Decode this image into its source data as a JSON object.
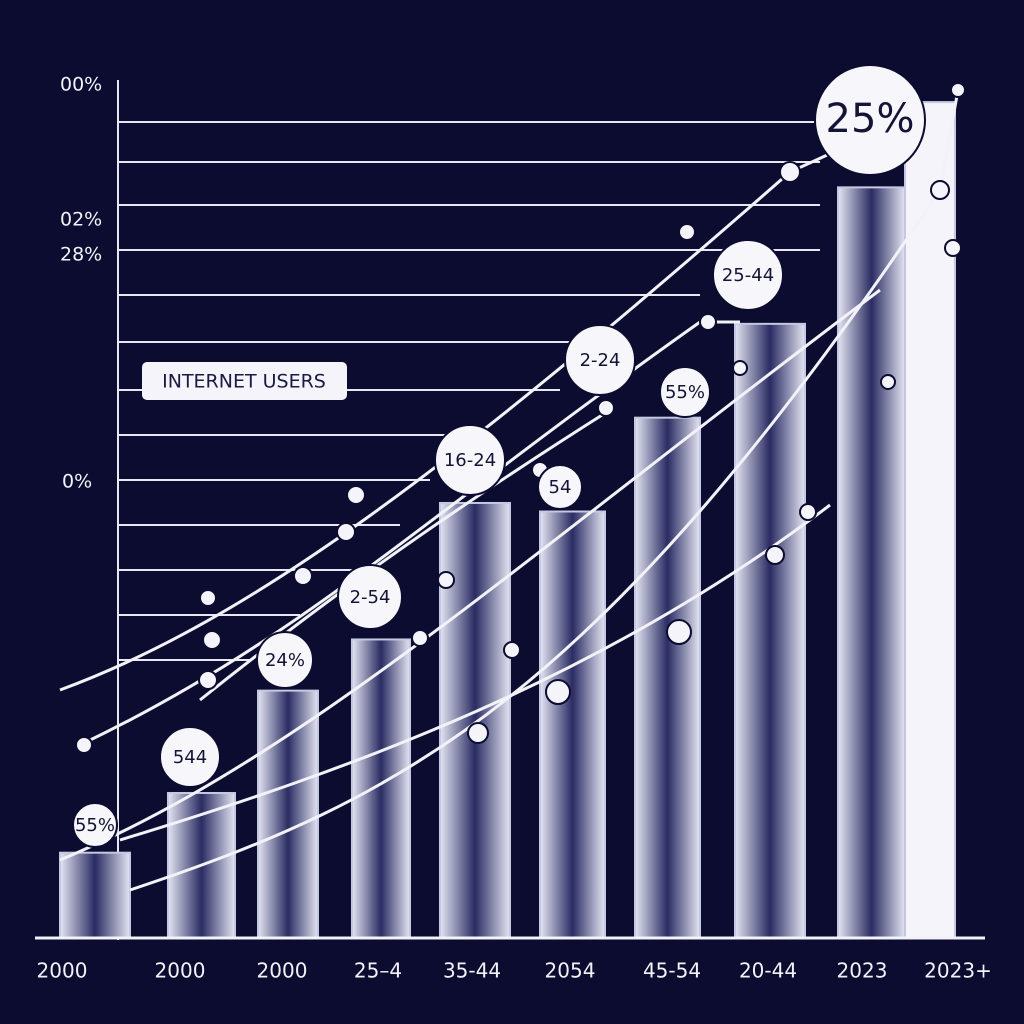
{
  "chart_data": {
    "type": "bar",
    "title": "INTERNET USERS",
    "categories": [
      "2000",
      "2000",
      "2000",
      "25–4",
      "35-44",
      "2054",
      "45-54",
      "20-44",
      "2023",
      "2023+"
    ],
    "values": [
      10,
      17,
      29,
      35,
      51,
      50,
      61,
      72,
      88,
      98
    ],
    "color": "#c5c8e2",
    "ylim": [
      0,
      100
    ],
    "axis_texts": [
      "00%",
      "02%",
      "28%",
      "0%"
    ],
    "annotations": [
      "55%",
      "544",
      "24%",
      "2-54",
      "16-24",
      "54",
      "2-24",
      "55%",
      "25-44",
      "25%"
    ]
  }
}
